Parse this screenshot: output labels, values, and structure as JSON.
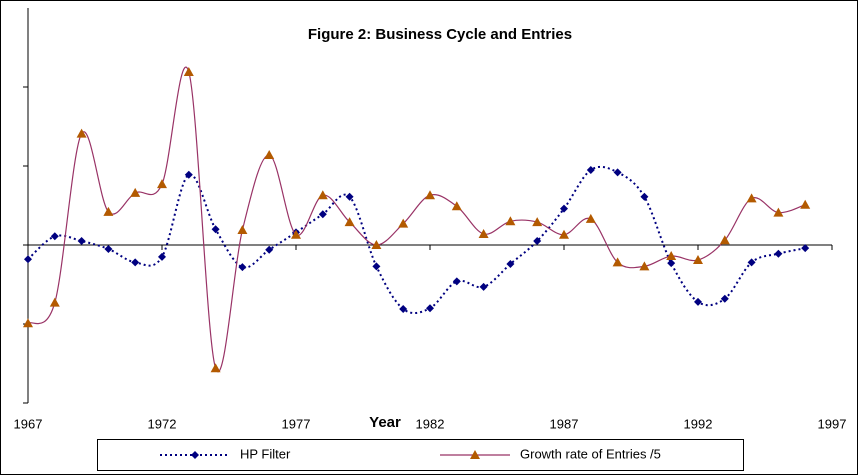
{
  "chart_data": {
    "type": "line",
    "title": "Figure 2: Business Cycle and Entries",
    "x_label": "Year",
    "x": [
      1967,
      1968,
      1969,
      1970,
      1971,
      1972,
      1973,
      1974,
      1975,
      1976,
      1977,
      1978,
      1979,
      1980,
      1981,
      1982,
      1983,
      1984,
      1985,
      1986,
      1987,
      1988,
      1989,
      1990,
      1991,
      1992,
      1993,
      1994,
      1995,
      1996
    ],
    "series": [
      {
        "name": "HP Filter",
        "color": "#000080",
        "marker": "diamond",
        "dash": "dotted",
        "values": [
          -0.18,
          0.11,
          0.05,
          -0.05,
          -0.22,
          -0.15,
          0.89,
          0.2,
          -0.28,
          -0.06,
          0.16,
          0.39,
          0.61,
          -0.27,
          -0.81,
          -0.8,
          -0.46,
          -0.53,
          -0.24,
          0.05,
          0.46,
          0.95,
          0.92,
          0.61,
          -0.23,
          -0.72,
          -0.68,
          -0.22,
          -0.11,
          -0.04
        ]
      },
      {
        "name": "Growth rate of Entries /5",
        "color": "#993366",
        "marker": "triangle",
        "marker_color": "#b35a00",
        "dash": "solid",
        "values": [
          -0.99,
          -0.73,
          1.41,
          0.42,
          0.66,
          0.77,
          2.19,
          -1.56,
          0.19,
          1.14,
          0.13,
          0.63,
          0.29,
          0.0,
          0.27,
          0.63,
          0.49,
          0.14,
          0.3,
          0.29,
          0.13,
          0.33,
          -0.22,
          -0.27,
          -0.14,
          -0.19,
          0.06,
          0.59,
          0.41,
          0.51
        ]
      }
    ],
    "xlim": [
      1967,
      1997
    ],
    "xticks": [
      1967,
      1972,
      1977,
      1982,
      1987,
      1992,
      1997
    ],
    "ylim": [
      -2,
      3
    ],
    "yticks": [
      -2,
      -1,
      0,
      1,
      2
    ],
    "grid": false,
    "legend": "bottom"
  }
}
